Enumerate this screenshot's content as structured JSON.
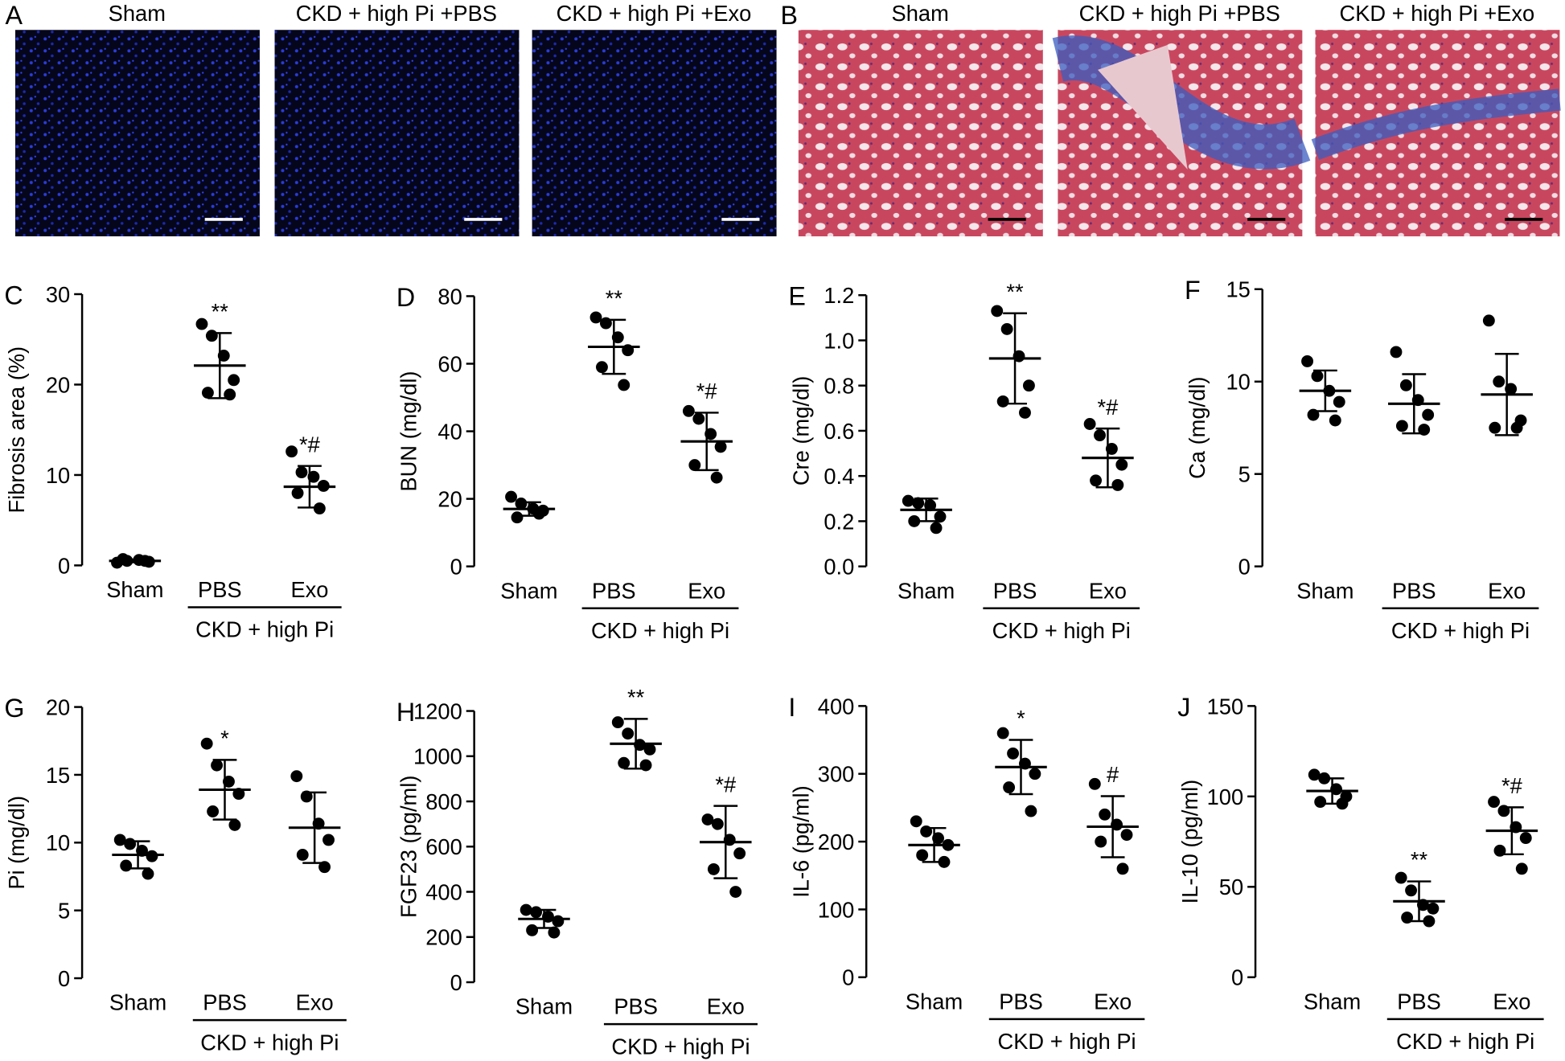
{
  "images": [
    {
      "label": "A",
      "titles": [
        "Sham",
        "CKD + high Pi +PBS",
        "CKD + high Pi +Exo"
      ]
    },
    {
      "label": "B",
      "titles": [
        "Sham",
        "CKD + high Pi +PBS",
        "CKD + high Pi +Exo"
      ]
    }
  ],
  "chart_data": [
    {
      "type": "dot",
      "label": "C",
      "ylabel": "Fibrosis area (%)",
      "categories": [
        "Sham",
        "PBS",
        "Exo"
      ],
      "group_label": "CKD + high Pi",
      "ylim": [
        0,
        30
      ],
      "yticks": [
        0,
        10,
        20,
        30
      ],
      "points": [
        [
          0.3,
          0.5,
          0.6,
          0.4,
          0.7,
          0.5
        ],
        [
          26.7,
          25.4,
          23.2,
          20.5,
          19.1,
          18.9
        ],
        [
          12.6,
          10.3,
          9.8,
          8.8,
          8.0,
          6.3
        ]
      ],
      "means": [
        0.5,
        22.1,
        8.7
      ],
      "sd": [
        0.15,
        3.6,
        2.3
      ],
      "annotations": [
        null,
        "**",
        "*#"
      ]
    },
    {
      "type": "dot",
      "label": "D",
      "ylabel": "BUN (mg/dl)",
      "categories": [
        "Sham",
        "PBS",
        "Exo"
      ],
      "group_label": "CKD + high Pi",
      "ylim": [
        0,
        80
      ],
      "yticks": [
        0,
        20,
        40,
        60,
        80
      ],
      "points": [
        [
          20.6,
          18.6,
          17.1,
          16.5,
          14.5,
          15.6
        ],
        [
          73.7,
          72,
          67.8,
          64,
          59,
          53.7
        ],
        [
          46,
          43.7,
          39.2,
          35.4,
          30,
          26.3
        ]
      ],
      "means": [
        17,
        65,
        37
      ],
      "sd": [
        2,
        8,
        8.5
      ],
      "annotations": [
        null,
        "**",
        "*#"
      ]
    },
    {
      "type": "dot",
      "label": "E",
      "ylabel": "Cre (mg/dl)",
      "categories": [
        "Sham",
        "PBS",
        "Exo"
      ],
      "group_label": "CKD + high Pi",
      "ylim": [
        0,
        1.2
      ],
      "yticks": [
        {
          "value": 0,
          "label": "0.0"
        },
        0.2,
        0.4,
        0.6,
        0.8,
        {
          "value": 1,
          "label": "1.0"
        },
        1.2
      ],
      "points": [
        [
          0.29,
          0.28,
          0.27,
          0.22,
          0.2,
          0.17
        ],
        [
          1.13,
          1.05,
          0.93,
          0.8,
          0.73,
          0.68
        ],
        [
          0.63,
          0.58,
          0.52,
          0.45,
          0.38,
          0.36
        ]
      ],
      "means": [
        0.25,
        0.92,
        0.48
      ],
      "sd": [
        0.05,
        0.2,
        0.13
      ],
      "annotations": [
        null,
        "**",
        "*#"
      ]
    },
    {
      "type": "dot",
      "label": "F",
      "ylabel": "Ca (mg/dl)",
      "categories": [
        "Sham",
        "PBS",
        "Exo"
      ],
      "group_label": "CKD + high Pi",
      "ylim": [
        0,
        15
      ],
      "yticks": [
        0,
        5,
        10,
        15
      ],
      "points": [
        [
          11.1,
          10.3,
          9.5,
          8.9,
          8.2,
          7.9
        ],
        [
          11.6,
          9.8,
          9.0,
          8.2,
          7.6,
          7.4
        ],
        [
          13.3,
          10.0,
          9.6,
          7.9,
          7.5,
          7.5
        ]
      ],
      "means": [
        9.5,
        8.8,
        9.3
      ],
      "sd": [
        1.1,
        1.6,
        2.2
      ],
      "annotations": [
        null,
        null,
        null
      ]
    },
    {
      "type": "dot",
      "label": "G",
      "ylabel": "Pi (mg/dl)",
      "categories": [
        "Sham",
        "PBS",
        "Exo"
      ],
      "group_label": "CKD + high Pi",
      "ylim": [
        0,
        20
      ],
      "yticks": [
        0,
        5,
        10,
        15,
        20
      ],
      "points": [
        [
          10.2,
          9.9,
          9.4,
          9.0,
          8.3,
          7.7
        ],
        [
          17.3,
          15.7,
          14.5,
          13.6,
          12.3,
          11.3
        ],
        [
          14.9,
          13.4,
          11.4,
          10.2,
          9.1,
          8.2
        ]
      ],
      "means": [
        9.1,
        13.9,
        11.1
      ],
      "sd": [
        1,
        2.2,
        2.6
      ],
      "annotations": [
        null,
        "*",
        null
      ]
    },
    {
      "type": "dot",
      "label": "H",
      "ylabel": "FGF23 (pg/ml)",
      "categories": [
        "Sham",
        "PBS",
        "Exo"
      ],
      "group_label": "CKD + high Pi",
      "ylim": [
        0,
        1200
      ],
      "yticks": [
        0,
        200,
        400,
        600,
        800,
        1000,
        1200
      ],
      "points": [
        [
          320,
          310,
          290,
          270,
          230,
          220
        ],
        [
          1150,
          1100,
          1050,
          1030,
          970,
          960
        ],
        [
          720,
          700,
          630,
          570,
          500,
          400
        ]
      ],
      "means": [
        280,
        1055,
        620
      ],
      "sd": [
        40,
        110,
        160
      ],
      "annotations": [
        null,
        "**",
        "*#"
      ]
    },
    {
      "type": "dot",
      "label": "I",
      "ylabel": "IL-6 (pg/ml)",
      "categories": [
        "Sham",
        "PBS",
        "Exo"
      ],
      "group_label": "CKD + high Pi",
      "ylim": [
        0,
        400
      ],
      "yticks": [
        0,
        100,
        200,
        300,
        400
      ],
      "points": [
        [
          230,
          215,
          205,
          195,
          180,
          170
        ],
        [
          360,
          330,
          315,
          300,
          280,
          245
        ],
        [
          285,
          240,
          225,
          210,
          200,
          160
        ]
      ],
      "means": [
        195,
        310,
        222
      ],
      "sd": [
        25,
        40,
        45
      ],
      "annotations": [
        null,
        "*",
        "#"
      ]
    },
    {
      "type": "dot",
      "label": "J",
      "ylabel": "IL-10 (pg/ml)",
      "categories": [
        "Sham",
        "PBS",
        "Exo"
      ],
      "group_label": "CKD + high Pi",
      "ylim": [
        0,
        150
      ],
      "yticks": [
        0,
        50,
        100,
        150
      ],
      "points": [
        [
          112,
          110,
          104,
          100,
          97,
          96
        ],
        [
          55,
          48,
          40,
          38,
          33,
          31
        ],
        [
          97,
          92,
          83,
          77,
          70,
          60
        ]
      ],
      "means": [
        103,
        42,
        81
      ],
      "sd": [
        7,
        11,
        13
      ],
      "annotations": [
        null,
        "**",
        "*#"
      ]
    }
  ]
}
